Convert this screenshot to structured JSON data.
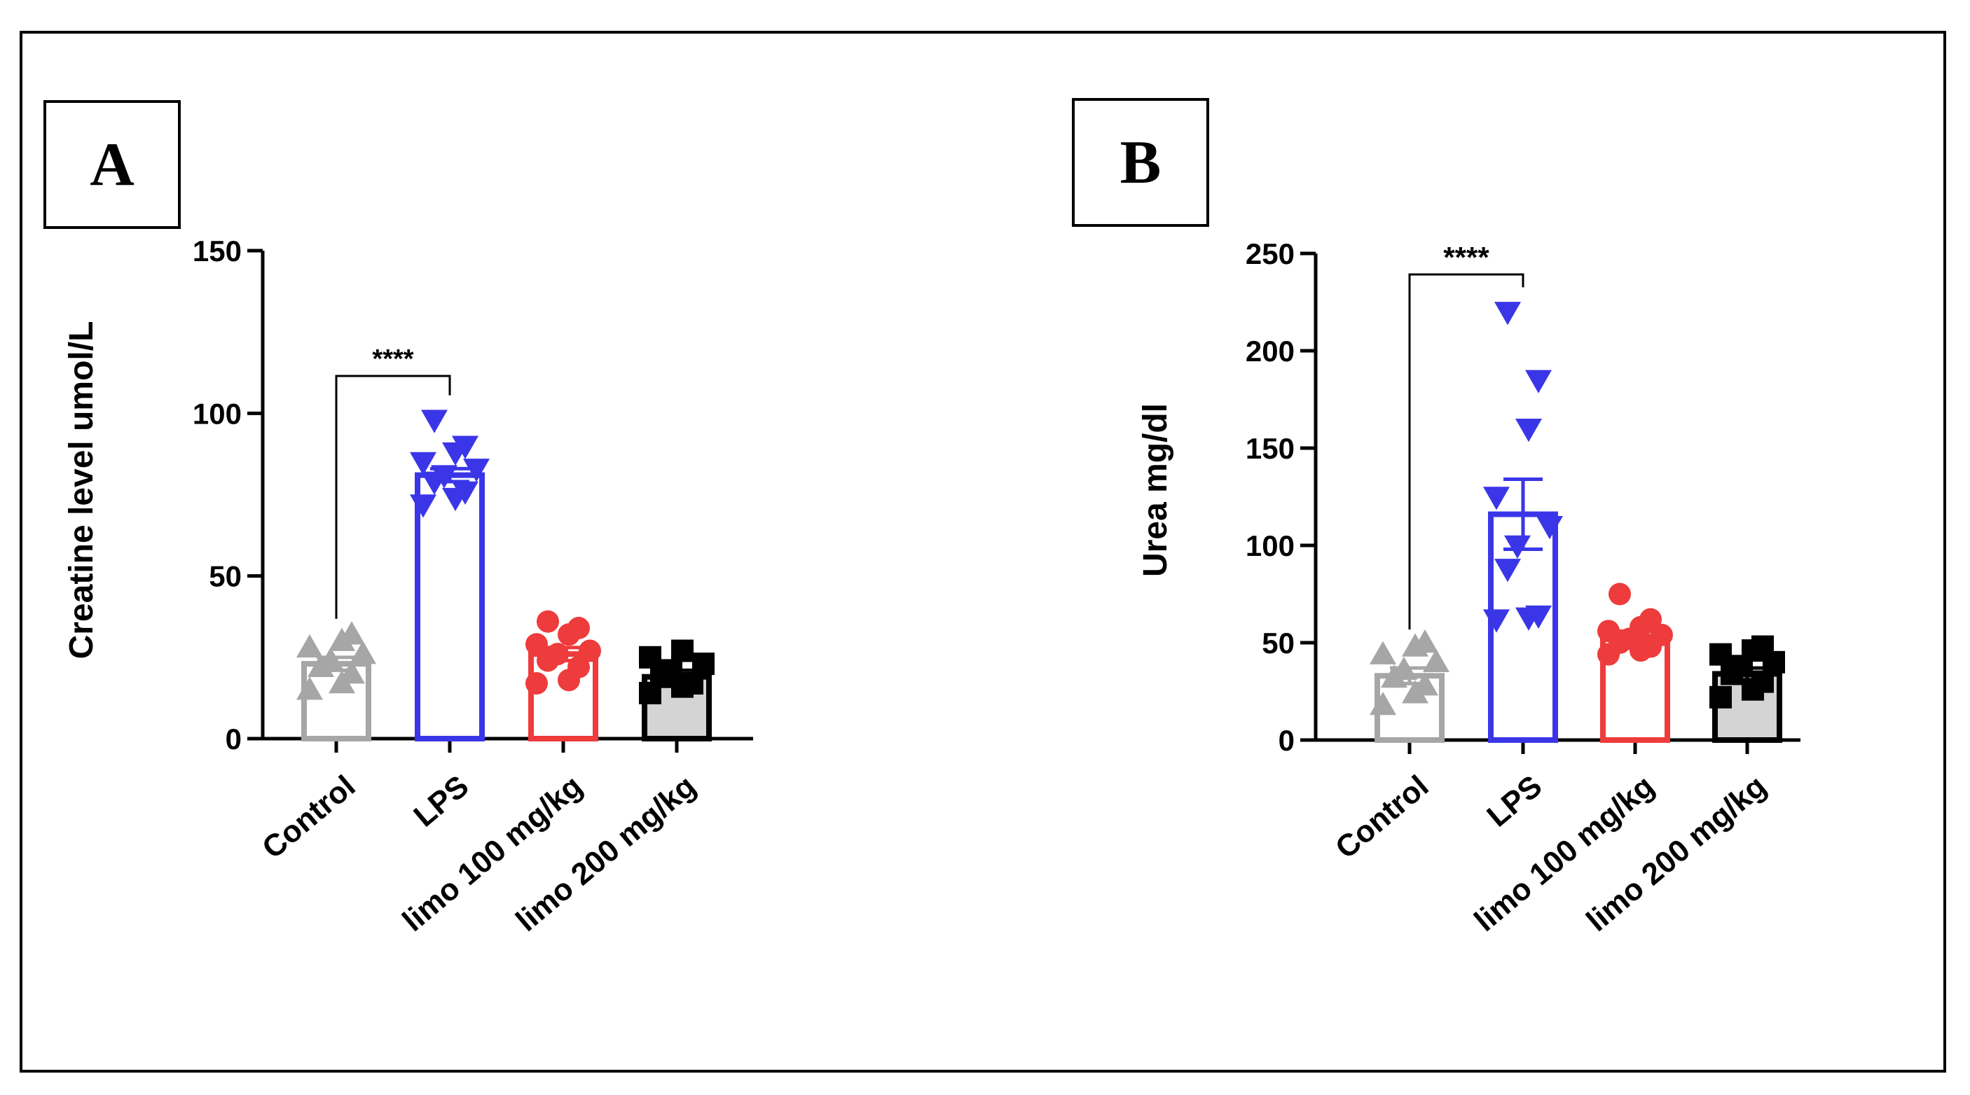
{
  "panels": [
    {
      "label": "A"
    },
    {
      "label": "B"
    }
  ],
  "colors": {
    "Control": "#a6a6a6",
    "LPS": "#3a36e8",
    "limo 100 mg/kg": "#ee3b3b",
    "limo 200 mg/kg": "#000000",
    "limo200_fill": "#d4d4d4"
  },
  "chart_data": [
    {
      "type": "bar",
      "panel": "A",
      "title": "",
      "xlabel": "",
      "ylabel": "Creatine level umol/L",
      "ylim": [
        0,
        150
      ],
      "yticks": [
        0,
        50,
        100,
        150
      ],
      "categories": [
        "Control",
        "LPS",
        "limo 100 mg/kg",
        "limo 200 mg/kg"
      ],
      "values": [
        23,
        81,
        26,
        19
      ],
      "errors": [
        2,
        2,
        2,
        2
      ],
      "points": [
        [
          15,
          17,
          20,
          22,
          24,
          26,
          28,
          30,
          32
        ],
        [
          72,
          74,
          76,
          79,
          81,
          83,
          85,
          88,
          90,
          98
        ],
        [
          17,
          18,
          22,
          24,
          26,
          27,
          29,
          32,
          34,
          36
        ],
        [
          14,
          16,
          17,
          19,
          21,
          23,
          25,
          27
        ]
      ],
      "significance": {
        "from": "Control",
        "to": "LPS",
        "label": "****"
      }
    },
    {
      "type": "bar",
      "panel": "B",
      "title": "",
      "xlabel": "",
      "ylabel": "Urea mg/dl",
      "ylim": [
        0,
        250
      ],
      "yticks": [
        0,
        50,
        100,
        150,
        200,
        250
      ],
      "categories": [
        "Control",
        "LPS",
        "limo 100 mg/kg",
        "limo 200 mg/kg"
      ],
      "values": [
        33,
        116,
        53,
        34
      ],
      "errors": [
        4,
        18,
        3,
        3
      ],
      "points": [
        [
          18,
          24,
          28,
          32,
          36,
          40,
          44,
          48,
          50
        ],
        [
          62,
          63,
          64,
          88,
          100,
          110,
          125,
          160,
          185,
          220
        ],
        [
          44,
          46,
          48,
          50,
          52,
          54,
          56,
          58,
          62,
          75
        ],
        [
          22,
          26,
          30,
          34,
          38,
          40,
          44,
          46,
          48
        ]
      ],
      "significance": {
        "from": "Control",
        "to": "LPS",
        "label": "****"
      }
    }
  ]
}
